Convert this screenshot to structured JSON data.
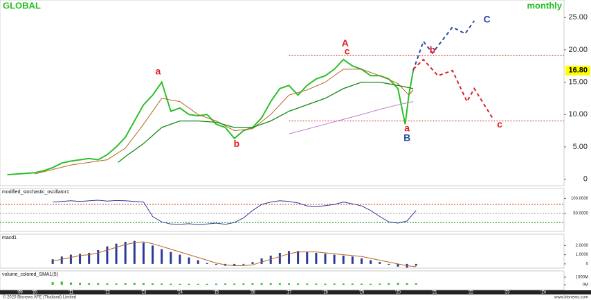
{
  "chart_data": [
    {
      "type": "line",
      "title": "GLOBAL",
      "subtitle": "monthly",
      "xlim": [
        2009.05,
        2024.57
      ],
      "xticks": [
        {
          "value": 2009.6,
          "label": "'09"
        },
        {
          "value": 2010,
          "label": "'10"
        },
        {
          "value": 2011,
          "label": "'11"
        },
        {
          "value": 2012,
          "label": "'12"
        },
        {
          "value": 2013,
          "label": "'13"
        },
        {
          "value": 2014,
          "label": "'14"
        },
        {
          "value": 2015,
          "label": "'15"
        },
        {
          "value": 2016,
          "label": "'16"
        },
        {
          "value": 2017,
          "label": "'17"
        },
        {
          "value": 2018,
          "label": "'18"
        },
        {
          "value": 2019,
          "label": "'19"
        },
        {
          "value": 2020,
          "label": "'20"
        },
        {
          "value": 2021,
          "label": "'21"
        },
        {
          "value": 2022,
          "label": "'22"
        },
        {
          "value": 2023,
          "label": "'23"
        },
        {
          "value": 2024,
          "label": "'24"
        }
      ],
      "ylim": [
        -1,
        27.7
      ],
      "yticks": [
        0,
        {
          "value": 5,
          "label": "5.00"
        },
        {
          "value": 10,
          "label": "10.00"
        },
        {
          "value": 15,
          "label": "15.00"
        },
        {
          "value": 20,
          "label": "20.00"
        },
        {
          "value": 25,
          "label": "25.00"
        }
      ],
      "grid": false,
      "hlines": [
        {
          "value": 19.1,
          "from": 2017.0,
          "color": "#e02020"
        },
        {
          "value": 9.0,
          "from": 2017.0,
          "color": "#e02020"
        }
      ],
      "last_price": {
        "value": 16.8,
        "label": "16.80"
      },
      "series": [
        {
          "color": "#2bbf2b",
          "width": 2,
          "x": [
            2009.25,
            2009.5,
            2009.75,
            2010.0,
            2010.25,
            2010.5,
            2010.75,
            2011.0,
            2011.25,
            2011.5,
            2011.75,
            2012.0,
            2012.25,
            2012.5,
            2012.75,
            2013.0,
            2013.25,
            2013.5,
            2013.75,
            2014.0,
            2014.25,
            2014.5,
            2014.75,
            2015.0,
            2015.25,
            2015.5,
            2015.75,
            2016.0,
            2016.25,
            2016.5,
            2016.75,
            2017.0,
            2017.25,
            2017.5,
            2017.75,
            2018.0,
            2018.25,
            2018.5,
            2018.75,
            2019.0,
            2019.25,
            2019.5,
            2019.75,
            2020.0,
            2020.2,
            2020.3,
            2020.42
          ],
          "values": [
            0.7,
            0.8,
            0.9,
            1.0,
            1.3,
            1.8,
            2.5,
            2.8,
            3.0,
            3.2,
            3.0,
            3.8,
            5.0,
            6.5,
            9.0,
            11.5,
            13.0,
            15.0,
            10.5,
            11.0,
            10.0,
            9.8,
            10.0,
            8.5,
            8.0,
            6.3,
            7.5,
            8.0,
            9.5,
            12.0,
            14.0,
            14.5,
            13.0,
            14.5,
            15.5,
            16.0,
            17.0,
            18.5,
            17.5,
            17.0,
            16.0,
            16.0,
            15.5,
            14.0,
            8.5,
            13.0,
            16.8
          ]
        },
        {
          "color": "#b5651d",
          "width": 1,
          "x": [
            2010.0,
            2011.0,
            2012.0,
            2012.5,
            2013.0,
            2013.5,
            2014.0,
            2014.5,
            2015.0,
            2015.5,
            2016.0,
            2016.5,
            2017.0,
            2017.5,
            2018.0,
            2018.5,
            2019.0,
            2019.5,
            2020.0,
            2020.3,
            2020.42
          ],
          "values": [
            0.8,
            2.2,
            3.0,
            4.8,
            8.5,
            12.5,
            12.0,
            10.0,
            9.0,
            7.5,
            7.8,
            10.0,
            13.0,
            13.8,
            15.0,
            17.0,
            17.0,
            16.0,
            14.8,
            13.0,
            13.8
          ]
        },
        {
          "color": "#118811",
          "width": 1.3,
          "x": [
            2012.3,
            2012.5,
            2013.0,
            2013.5,
            2014.0,
            2014.5,
            2015.0,
            2015.5,
            2016.0,
            2016.5,
            2017.0,
            2017.5,
            2018.0,
            2018.5,
            2019.0,
            2019.5,
            2020.0,
            2020.42
          ],
          "values": [
            2.6,
            3.5,
            5.5,
            8.0,
            9.0,
            9.0,
            8.8,
            8.0,
            8.0,
            9.0,
            10.5,
            11.5,
            12.5,
            14.0,
            15.0,
            15.0,
            14.5,
            14.0
          ]
        },
        {
          "color": "#c070d0",
          "width": 1,
          "x": [
            2017.0,
            2018.0,
            2019.0,
            2019.5,
            2020.0,
            2020.42
          ],
          "values": [
            7.0,
            8.5,
            10.0,
            10.8,
            11.5,
            12.0
          ]
        },
        {
          "color": "#2a4aa0",
          "width": 2,
          "dash": true,
          "x": [
            2020.42,
            2020.7,
            2020.95,
            2021.5,
            2021.85,
            2022.1
          ],
          "values": [
            16.8,
            21.3,
            19.5,
            23.5,
            22.5,
            24.5
          ]
        },
        {
          "color": "#e02020",
          "width": 2,
          "dash": true,
          "x": [
            2020.42,
            2020.7,
            2021.1,
            2021.5,
            2021.9,
            2022.1,
            2022.6
          ],
          "values": [
            17.0,
            18.5,
            16.0,
            16.8,
            12.0,
            14.0,
            9.5
          ]
        }
      ],
      "annotations": [
        {
          "text": "a",
          "x": 2013.4,
          "y": 16.6,
          "color": "#e02020"
        },
        {
          "text": "b",
          "x": 2015.56,
          "y": 5.4,
          "color": "#e02020"
        },
        {
          "text": "A",
          "x": 2018.55,
          "y": 20.9,
          "color": "#e02020"
        },
        {
          "text": "c",
          "x": 2018.6,
          "y": 19.7,
          "color": "#e02020"
        },
        {
          "text": "a",
          "x": 2020.25,
          "y": 7.8,
          "color": "#e02020"
        },
        {
          "text": "B",
          "x": 2020.25,
          "y": 6.3,
          "color": "#2a4aa0"
        },
        {
          "text": "b",
          "x": 2020.95,
          "y": 19.9,
          "color": "#e02020"
        },
        {
          "text": "C",
          "x": 2022.45,
          "y": 24.6,
          "color": "#2a4aa0"
        },
        {
          "text": "c",
          "x": 2022.8,
          "y": 8.4,
          "color": "#e02020"
        }
      ]
    },
    {
      "type": "line",
      "title": "modified_stochastic_oscillator1",
      "ylim": [
        -9.5,
        133
      ],
      "yticks": [
        {
          "value": 100,
          "label": "100.0000"
        },
        {
          "value": 50,
          "label": "50.0000"
        }
      ],
      "hlines": [
        {
          "value": 80,
          "from": 2009.05,
          "color": "#e02020"
        },
        {
          "value": 50,
          "from": 2009.05,
          "color": "#999999"
        },
        {
          "value": 20,
          "from": 2009.05,
          "color": "#118811"
        }
      ],
      "series": [
        {
          "color": "#2a3a9a",
          "width": 1,
          "x": [
            2010.5,
            2010.75,
            2011.0,
            2011.25,
            2011.5,
            2011.75,
            2012.0,
            2012.25,
            2012.5,
            2012.75,
            2013.0,
            2013.25,
            2013.5,
            2013.75,
            2014.0,
            2014.25,
            2014.5,
            2014.75,
            2015.0,
            2015.25,
            2015.5,
            2015.75,
            2016.0,
            2016.25,
            2016.5,
            2016.75,
            2017.0,
            2017.25,
            2017.5,
            2017.75,
            2018.0,
            2018.25,
            2018.5,
            2018.75,
            2019.0,
            2019.25,
            2019.5,
            2019.75,
            2020.0,
            2020.25,
            2020.5
          ],
          "values": [
            88,
            90,
            92,
            90,
            92,
            94,
            91,
            93,
            92,
            90,
            88,
            40,
            22,
            15,
            14,
            16,
            13,
            15,
            18,
            14,
            20,
            35,
            60,
            80,
            88,
            92,
            90,
            85,
            75,
            72,
            76,
            80,
            88,
            82,
            75,
            60,
            40,
            22,
            18,
            25,
            60
          ]
        }
      ]
    },
    {
      "type": "combo",
      "title": "macd1",
      "ylim": [
        -0.46,
        3.23
      ],
      "yticks": [
        {
          "value": 2,
          "label": "2.0000"
        },
        {
          "value": 1,
          "label": "1.0000"
        },
        0
      ],
      "series": [
        {
          "style": "bar",
          "color": "#2a3a9a",
          "x": [
            2010.5,
            2010.75,
            2011.0,
            2011.25,
            2011.5,
            2011.75,
            2012.0,
            2012.25,
            2012.5,
            2012.75,
            2013.0,
            2013.25,
            2013.5,
            2013.75,
            2014.0,
            2014.25,
            2014.5,
            2014.75,
            2015.0,
            2015.25,
            2015.5,
            2015.75,
            2016.0,
            2016.25,
            2016.5,
            2016.75,
            2017.0,
            2017.25,
            2017.5,
            2017.75,
            2018.0,
            2018.25,
            2018.5,
            2018.75,
            2019.0,
            2019.25,
            2019.5,
            2019.75,
            2020.0,
            2020.25,
            2020.5
          ],
          "values": [
            0.5,
            0.8,
            1.0,
            1.1,
            1.2,
            1.5,
            1.9,
            2.2,
            2.4,
            2.5,
            2.3,
            2.0,
            1.6,
            1.3,
            1.0,
            0.7,
            0.4,
            0.1,
            -0.1,
            -0.2,
            -0.2,
            -0.1,
            0.2,
            0.6,
            0.9,
            1.2,
            1.4,
            1.4,
            1.3,
            1.2,
            1.1,
            1.0,
            0.9,
            0.8,
            0.6,
            0.4,
            0.2,
            -0.1,
            -0.3,
            -0.4,
            -0.2
          ]
        },
        {
          "style": "line",
          "color": "#b5651d",
          "width": 1,
          "x": [
            2010.5,
            2010.75,
            2011.0,
            2011.25,
            2011.5,
            2011.75,
            2012.0,
            2012.25,
            2012.5,
            2012.75,
            2013.0,
            2013.25,
            2013.5,
            2013.75,
            2014.0,
            2014.25,
            2014.5,
            2014.75,
            2015.0,
            2015.25,
            2015.5,
            2015.75,
            2016.0,
            2016.25,
            2016.5,
            2016.75,
            2017.0,
            2017.25,
            2017.5,
            2017.75,
            2018.0,
            2018.25,
            2018.5,
            2018.75,
            2019.0,
            2019.25,
            2019.5,
            2019.75,
            2020.0,
            2020.25,
            2020.5
          ],
          "values": [
            0.3,
            0.5,
            0.7,
            0.9,
            1.0,
            1.2,
            1.5,
            1.8,
            2.1,
            2.3,
            2.4,
            2.2,
            1.9,
            1.6,
            1.3,
            1.0,
            0.7,
            0.4,
            0.1,
            -0.1,
            -0.2,
            -0.2,
            -0.1,
            0.2,
            0.5,
            0.8,
            1.1,
            1.3,
            1.3,
            1.3,
            1.2,
            1.1,
            1.0,
            0.9,
            0.8,
            0.6,
            0.4,
            0.2,
            0.0,
            -0.2,
            -0.3
          ]
        }
      ]
    },
    {
      "type": "combo",
      "title": "volume_colored_SMA1(5)",
      "ylim": [
        -636,
        1818
      ],
      "yticks": [
        {
          "value": 1000,
          "label": "1000M"
        },
        {
          "value": 0,
          "label": "0M"
        }
      ],
      "series": [
        {
          "style": "bar",
          "color": "#2bbf2b",
          "x": [
            2010.5,
            2010.75,
            2011.0,
            2011.25,
            2011.5,
            2011.75,
            2012.0,
            2012.25,
            2012.5,
            2012.75,
            2013.0,
            2013.25,
            2013.5,
            2013.75,
            2014.0,
            2014.25,
            2014.5,
            2014.75,
            2015.0,
            2015.25,
            2015.5,
            2015.75,
            2016.0,
            2016.25,
            2016.5,
            2016.75,
            2017.0,
            2017.25,
            2017.5,
            2017.75,
            2018.0,
            2018.25,
            2018.5,
            2018.75,
            2019.0,
            2019.25,
            2019.5,
            2019.75,
            2020.0,
            2020.25,
            2020.5
          ],
          "values": [
            350,
            420,
            300,
            250,
            200,
            220,
            180,
            160,
            200,
            250,
            230,
            180,
            150,
            140,
            120,
            130,
            110,
            120,
            140,
            160,
            150,
            170,
            200,
            220,
            210,
            190,
            180,
            170,
            160,
            150,
            140,
            150,
            160,
            150,
            140,
            130,
            150,
            200,
            250,
            220,
            180
          ]
        }
      ]
    }
  ],
  "footer": {
    "left": "© 2020 Bisnews AFE (Thailand) Limited",
    "right": "www.bisnews.com"
  }
}
